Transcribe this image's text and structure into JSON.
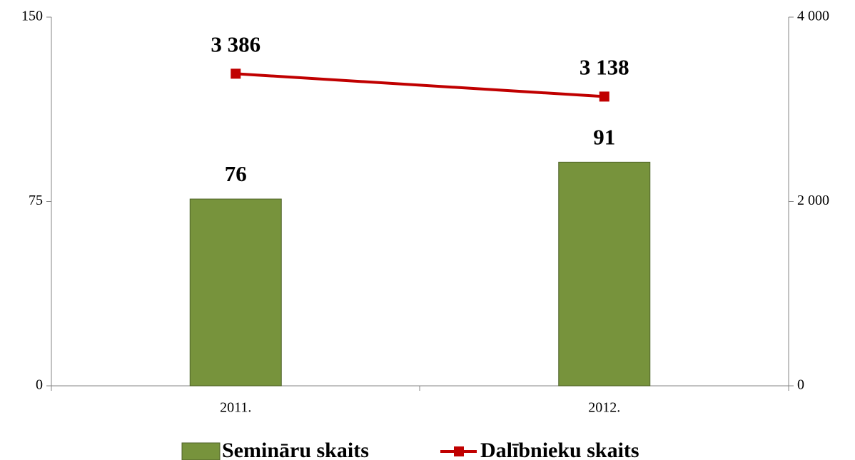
{
  "chart_data": {
    "type": "bar",
    "categories": [
      "2011.",
      "2012."
    ],
    "series": [
      {
        "name": "Semināru skaits",
        "type": "bar",
        "color": "#77933c",
        "values": [
          76,
          91
        ]
      },
      {
        "name": "Dalībnieku skaits",
        "type": "line",
        "axis": "y2",
        "color": "#c00000",
        "values": [
          3386,
          3138
        ],
        "value_labels": [
          "3 386",
          "3 138"
        ]
      }
    ],
    "ylim": [
      0,
      150
    ],
    "yticks": [
      0,
      75,
      150
    ],
    "y2lim": [
      0,
      4000
    ],
    "y2ticks": [
      0,
      {
        "value": 2000,
        "label": "2 000"
      },
      {
        "value": 4000,
        "label": "4 000"
      }
    ],
    "legend": "bottom"
  }
}
